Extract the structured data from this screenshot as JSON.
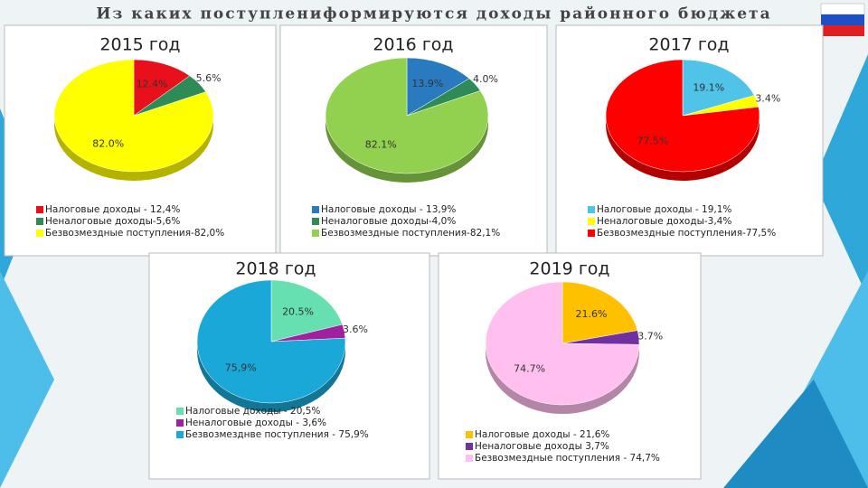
{
  "title": "Из каких поступлениформируются доходы районного бюджета",
  "chart_data": [
    {
      "type": "pie",
      "title": "2015 год",
      "categories": [
        "Налоговые доходы - 12,4%",
        "Неналоговые доходы-5,6%",
        "Безвозмездные поступления-82,0%"
      ],
      "values": [
        12.4,
        5.6,
        82.0
      ],
      "value_labels": [
        "12.4%",
        "5.6%",
        "82.0%"
      ],
      "colors": [
        "#e8101a",
        "#2e8b57",
        "#ffff00"
      ]
    },
    {
      "type": "pie",
      "title": "2016 год",
      "categories": [
        "Налоговые доходы - 13,9%",
        "Неналоговые доходы-4,0%",
        "Безвозмездные поступления-82,1%"
      ],
      "values": [
        13.9,
        4.0,
        82.1
      ],
      "value_labels": [
        "13.9%",
        "4.0%",
        "82.1%"
      ],
      "colors": [
        "#2a7ac0",
        "#2e8b57",
        "#92d050"
      ]
    },
    {
      "type": "pie",
      "title": "2017 год",
      "categories": [
        "Налоговые доходы - 19,1%",
        "Неналоговые доходы-3,4%",
        "Безвозмездные поступления-77,5%"
      ],
      "values": [
        19.1,
        3.4,
        77.5
      ],
      "value_labels": [
        "19.1%",
        "3.4%",
        "77.5%"
      ],
      "colors": [
        "#4fc3e8",
        "#ffff00",
        "#ff0000"
      ]
    },
    {
      "type": "pie",
      "title": "2018 год",
      "categories": [
        "Налоговые доходы - 20,5%",
        "Неналоговые доходы - 3,6%",
        "Безвозмезднве поступления - 75,9%"
      ],
      "values": [
        20.5,
        3.6,
        75.9
      ],
      "value_labels": [
        "20.5%",
        "3.6%",
        "75,9%"
      ],
      "colors": [
        "#66e0b0",
        "#a020a0",
        "#1aa8d8"
      ]
    },
    {
      "type": "pie",
      "title": "2019 год",
      "categories": [
        "Налоговые доходы - 21,6%",
        "Неналоговые доходы 3,7%",
        "Безвозмездные поступления - 74,7%"
      ],
      "values": [
        21.6,
        3.7,
        74.7
      ],
      "value_labels": [
        "21.6%",
        "3.7%",
        "74.7%"
      ],
      "colors": [
        "#ffc000",
        "#7030a0",
        "#ffc0f0"
      ]
    }
  ]
}
